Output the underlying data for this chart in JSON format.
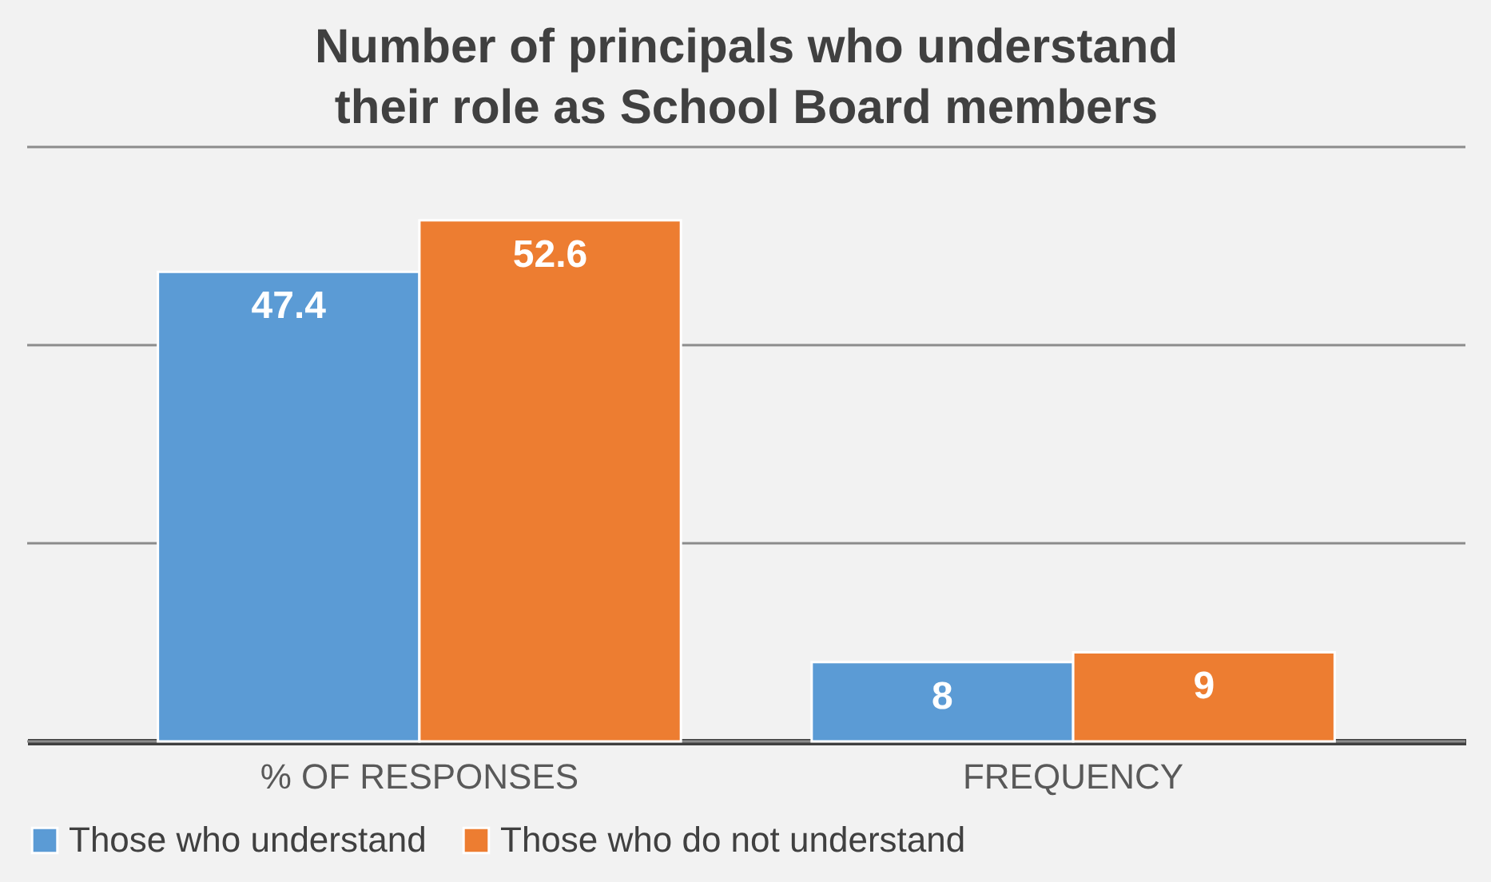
{
  "chart_data": {
    "type": "bar",
    "title": "Number of principals who understand their role as School Board members",
    "categories": [
      "% OF RESPONSES",
      "FREQUENCY"
    ],
    "series": [
      {
        "name": "Those who understand",
        "color": "#5b9bd5",
        "values": [
          47.4,
          8
        ]
      },
      {
        "name": "Those who do not understand",
        "color": "#ed7d31",
        "values": [
          52.6,
          9
        ]
      }
    ],
    "ylim": [
      0,
      60
    ],
    "yticks": [
      {
        "value": 0,
        "label": null
      },
      {
        "value": 20,
        "label": null
      },
      {
        "value": 40,
        "label": null
      },
      {
        "value": 60,
        "label": null
      }
    ],
    "grid": "y",
    "legend": "bottom",
    "data_labels": true,
    "tick_labels": "x"
  }
}
